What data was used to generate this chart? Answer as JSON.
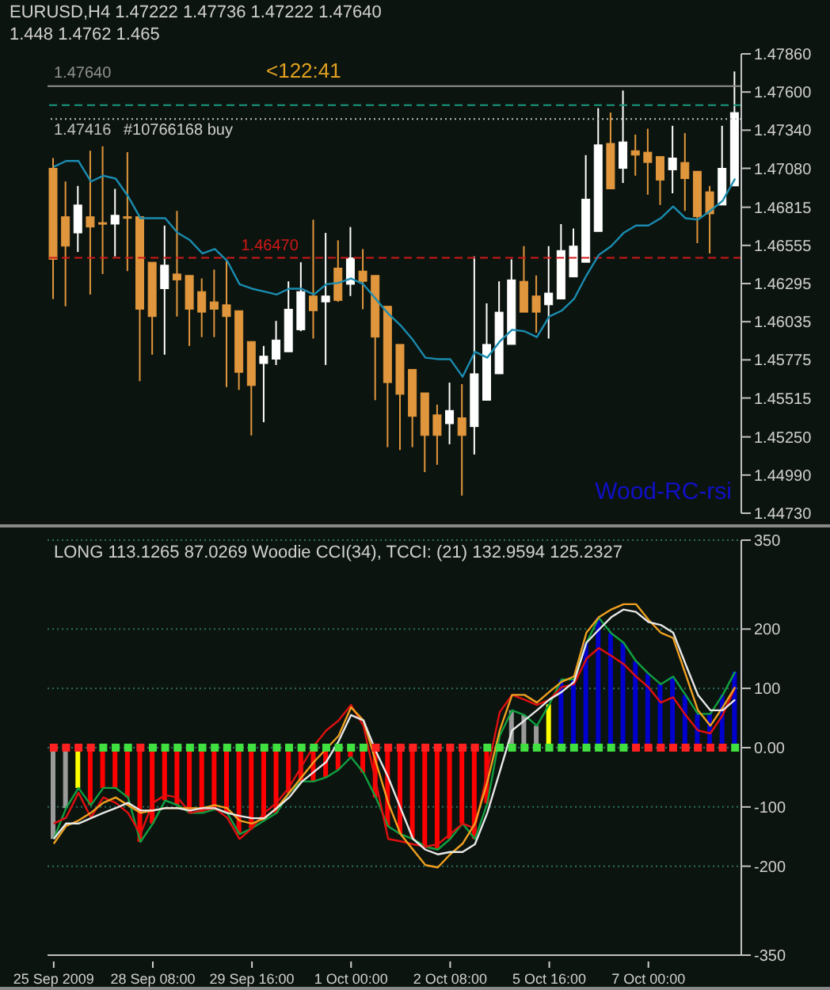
{
  "chart_data": [
    {
      "type": "candlestick",
      "title": "EURUSD,H4  1.47222 1.47736 1.47222 1.47640",
      "subtitle": "1.448 1.4762 1.465",
      "tick_labels": "y",
      "categories": [
        null,
        null,
        null,
        null,
        null,
        null,
        null,
        null,
        null,
        null,
        null,
        null,
        null,
        null,
        null,
        null,
        null,
        null,
        null,
        null,
        null,
        null,
        null,
        null,
        null,
        null,
        null,
        null,
        null,
        null,
        null,
        null,
        null,
        null,
        null,
        null,
        null,
        null,
        null,
        null,
        null,
        null,
        null,
        null,
        null,
        null,
        null,
        null,
        null,
        null,
        null,
        null,
        null,
        null,
        null,
        null
      ],
      "ohlc": [
        [
          1.4708,
          1.4715,
          1.4619,
          1.4646
        ],
        [
          1.4675,
          1.4699,
          1.4614,
          1.4655
        ],
        [
          1.4664,
          1.4696,
          1.4651,
          1.4683
        ],
        [
          1.4675,
          1.472,
          1.4622,
          1.4668
        ],
        [
          1.4671,
          1.4723,
          1.4636,
          1.467
        ],
        [
          1.467,
          1.4694,
          1.4648,
          1.4676
        ],
        [
          1.4675,
          1.4719,
          1.4638,
          1.4674
        ],
        [
          1.4675,
          1.4675,
          1.4563,
          1.4612
        ],
        [
          1.4644,
          1.4644,
          1.4581,
          1.4607
        ],
        [
          1.4626,
          1.4669,
          1.4581,
          1.4642
        ],
        [
          1.4636,
          1.4679,
          1.4607,
          1.4632
        ],
        [
          1.4635,
          1.4635,
          1.4587,
          1.4612
        ],
        [
          1.4624,
          1.4633,
          1.4593,
          1.461
        ],
        [
          1.4617,
          1.4639,
          1.4593,
          1.4612
        ],
        [
          1.4615,
          1.4645,
          1.4559,
          1.4607
        ],
        [
          1.4611,
          1.4611,
          1.4557,
          1.4569
        ],
        [
          1.459,
          1.459,
          1.4526,
          1.456
        ],
        [
          1.4575,
          1.4587,
          1.4535,
          1.458
        ],
        [
          1.4578,
          1.4604,
          1.4574,
          1.4591
        ],
        [
          1.4583,
          1.4631,
          1.4583,
          1.4612
        ],
        [
          1.4598,
          1.4644,
          1.4597,
          1.4624
        ],
        [
          1.4621,
          1.4673,
          1.4592,
          1.4611
        ],
        [
          1.4617,
          1.4664,
          1.4574,
          1.4621
        ],
        [
          1.464,
          1.4659,
          1.4617,
          1.4618
        ],
        [
          1.4629,
          1.4668,
          1.4621,
          1.4647
        ],
        [
          1.4638,
          1.4653,
          1.4612,
          1.4631
        ],
        [
          1.4635,
          1.4635,
          1.455,
          1.4593
        ],
        [
          1.4614,
          1.4614,
          1.4518,
          1.4562
        ],
        [
          1.4588,
          1.4588,
          1.4516,
          1.4554
        ],
        [
          1.4571,
          1.4571,
          1.4518,
          1.4539
        ],
        [
          1.4555,
          1.4555,
          1.4501,
          1.4526
        ],
        [
          1.454,
          1.4547,
          1.4506,
          1.4526
        ],
        [
          1.4534,
          1.4562,
          1.452,
          1.4543
        ],
        [
          1.4538,
          1.4561,
          1.4485,
          1.4526
        ],
        [
          1.4532,
          1.4648,
          1.4513,
          1.4568
        ],
        [
          1.455,
          1.4616,
          1.455,
          1.4588
        ],
        [
          1.4568,
          1.4631,
          1.4568,
          1.461
        ],
        [
          1.4588,
          1.4646,
          1.4588,
          1.4632
        ],
        [
          1.4631,
          1.4655,
          1.461,
          1.461
        ],
        [
          1.4621,
          1.4635,
          1.4596,
          1.461
        ],
        [
          1.4615,
          1.4655,
          1.4592,
          1.4623
        ],
        [
          1.4619,
          1.467,
          1.4619,
          1.4652
        ],
        [
          1.4634,
          1.4667,
          1.4634,
          1.4655
        ],
        [
          1.4644,
          1.4717,
          1.4644,
          1.4687
        ],
        [
          1.4665,
          1.4749,
          1.4665,
          1.4724
        ],
        [
          1.4725,
          1.4746,
          1.4694,
          1.4694
        ],
        [
          1.4708,
          1.4761,
          1.4698,
          1.4726
        ],
        [
          1.472,
          1.4731,
          1.4703,
          1.4717
        ],
        [
          1.4719,
          1.4735,
          1.469,
          1.4712
        ],
        [
          1.4716,
          1.4716,
          1.4683,
          1.47
        ],
        [
          1.4707,
          1.4737,
          1.4691,
          1.4715
        ],
        [
          1.4712,
          1.4732,
          1.4679,
          1.4701
        ],
        [
          1.4706,
          1.4706,
          1.4657,
          1.4675
        ],
        [
          1.4692,
          1.4696,
          1.465,
          1.4677
        ],
        [
          1.4683,
          1.4737,
          1.4683,
          1.4708
        ],
        [
          1.4696,
          1.4774,
          1.4696,
          1.4746
        ]
      ],
      "colors": [
        "#e0963c",
        "#e0963c",
        "#ffffff",
        "#e0963c",
        "#e0963c",
        "#ffffff",
        "#e0963c",
        "#e0963c",
        "#e0963c",
        "#ffffff",
        "#e0963c",
        "#e0963c",
        "#e0963c",
        "#e0963c",
        "#e0963c",
        "#e0963c",
        "#e0963c",
        "#ffffff",
        "#ffffff",
        "#ffffff",
        "#ffffff",
        "#e0963c",
        "#ffffff",
        "#e0963c",
        "#ffffff",
        "#e0963c",
        "#e0963c",
        "#e0963c",
        "#e0963c",
        "#e0963c",
        "#e0963c",
        "#e0963c",
        "#ffffff",
        "#e0963c",
        "#ffffff",
        "#ffffff",
        "#ffffff",
        "#ffffff",
        "#e0963c",
        "#e0963c",
        "#ffffff",
        "#ffffff",
        "#ffffff",
        "#ffffff",
        "#ffffff",
        "#e0963c",
        "#ffffff",
        "#e0963c",
        "#e0963c",
        "#e0963c",
        "#ffffff",
        "#e0963c",
        "#e0963c",
        "#e0963c",
        "#ffffff",
        "#ffffff"
      ],
      "series": [
        {
          "type": "line",
          "color": "#1a8cb0",
          "values": [
            1.4709,
            1.4713,
            1.4713,
            1.4699,
            1.4703,
            1.4701,
            1.4689,
            1.4674,
            1.4674,
            1.4674,
            1.4664,
            1.4659,
            1.465,
            1.4653,
            1.4645,
            1.4629,
            1.4626,
            1.4624,
            1.4622,
            1.4626,
            1.4626,
            1.4622,
            1.4629,
            1.463,
            1.4633,
            1.4629,
            1.4619,
            1.4609,
            1.4601,
            1.4591,
            1.4579,
            1.4578,
            1.4578,
            1.4566,
            1.4583,
            1.4579,
            1.459,
            1.4598,
            1.4597,
            1.4593,
            1.4607,
            1.4611,
            1.4619,
            1.4635,
            1.4649,
            1.4655,
            1.4664,
            1.4669,
            1.4669,
            1.4674,
            1.4682,
            1.4674,
            1.4673,
            1.4679,
            1.4686,
            1.4701
          ]
        }
      ],
      "ylim": [
        1.4473,
        1.4786
      ],
      "yticks": [
        {
          "value": 1.4786,
          "label": "1.47860"
        },
        {
          "value": 1.476,
          "label": "1.47600"
        },
        {
          "value": 1.4734,
          "label": "1.47340"
        },
        {
          "value": 1.4708,
          "label": "1.47080"
        },
        1.46815,
        {
          "value": 1.46555,
          "label": "1.46555"
        },
        {
          "value": 1.46295,
          "label": "1.46295"
        },
        1.46035,
        1.45775,
        1.45515,
        {
          "value": 1.4525,
          "label": "1.45250"
        },
        {
          "value": 1.4499,
          "label": "1.44990"
        },
        {
          "value": 1.4473,
          "label": "1.44730"
        }
      ],
      "ref_lines": [
        {
          "axis": "y",
          "value": 1.4764,
          "label": "1.47640",
          "color": "#909090",
          "line_style": "solid"
        },
        {
          "axis": "y",
          "value": 1.4751,
          "color": "#1a9a80",
          "line_style": "dashed"
        },
        {
          "axis": "y",
          "value": 1.47416,
          "label": "1.47416",
          "color": "#c0c0c0",
          "line_style": "dotted"
        },
        {
          "axis": "y",
          "value": 1.4647,
          "label": "1.46470",
          "color": "#d01818",
          "line_style": "dashed"
        }
      ],
      "annotations": [
        {
          "text": "#10766168 buy",
          "y": 1.47416
        },
        {
          "text": "<122:41",
          "y": 1.4764
        },
        "Wood-RC-rsi"
      ]
    },
    {
      "type": "bar",
      "title": "LONG 113.1265 87.0269  Woodie CCI(34), TCCI: (21) 132.9594 125.2327",
      "grid": "y",
      "categories": [
        "25 Sep 2009",
        null,
        null,
        null,
        null,
        null,
        null,
        null,
        "28 Sep 08:00",
        null,
        null,
        null,
        null,
        null,
        null,
        null,
        "29 Sep 16:00",
        null,
        null,
        null,
        null,
        null,
        null,
        null,
        "1 Oct 00:00",
        null,
        null,
        null,
        null,
        null,
        null,
        null,
        "2 Oct 08:00",
        null,
        null,
        null,
        null,
        null,
        null,
        null,
        "5 Oct 16:00",
        null,
        null,
        null,
        null,
        null,
        null,
        null,
        "7 Oct 00:00",
        null,
        null,
        null,
        null,
        null,
        null,
        null
      ],
      "series": [
        {
          "type": "bar",
          "colors": [
            "#9a9a9a",
            "#9a9a9a",
            "#ffff00",
            "#ff0000",
            "#ff0000",
            "#ff0000",
            "#ff0000",
            "#ff0000",
            "#ff0000",
            "#ff0000",
            "#ff0000",
            "#ff0000",
            "#ff0000",
            "#ff0000",
            "#ff0000",
            "#ff0000",
            "#ff0000",
            "#ff0000",
            "#ff0000",
            "#ff0000",
            "#ff0000",
            "#ff0000",
            "#ff0000",
            "#ff0000",
            "#ff0000",
            "#ff0000",
            "#ff0000",
            "#ff0000",
            "#ff0000",
            "#ff0000",
            "#ff0000",
            "#ff0000",
            "#ff0000",
            "#ff0000",
            "#ff0000",
            "#ff0000",
            "#9a9a9a",
            "#9a9a9a",
            "#9a9a9a",
            "#9a9a9a",
            "#ffff00",
            "#0000cc",
            "#0000cc",
            "#0000cc",
            "#0000cc",
            "#0000cc",
            "#0000cc",
            "#0000cc",
            "#0000cc",
            "#0000cc",
            "#0000cc",
            "#0000cc",
            "#0000cc",
            "#0000cc",
            "#0000cc",
            "#0000cc"
          ],
          "values": [
            -154,
            -102,
            -68,
            -97,
            -68,
            -68,
            -84,
            -159,
            -128,
            -89,
            -97,
            -110,
            -110,
            -104,
            -110,
            -146,
            -136,
            -123,
            -110,
            -76,
            -57,
            -57,
            -50,
            -37,
            -16,
            -42,
            -84,
            -133,
            -146,
            -154,
            -167,
            -172,
            -154,
            -128,
            -154,
            -94,
            null,
            63,
            55,
            37,
            73,
            115,
            115,
            177,
            219,
            193,
            177,
            146,
            125,
            107,
            120,
            89,
            57,
            57,
            89,
            128
          ]
        },
        {
          "type": "line",
          "color": "#10a040",
          "values": [
            -154,
            -102,
            -68,
            -97,
            -68,
            -68,
            -84,
            -159,
            -128,
            -89,
            -97,
            -110,
            -110,
            -104,
            -110,
            -146,
            -136,
            -123,
            -110,
            -76,
            -57,
            -57,
            -50,
            -37,
            -16,
            -42,
            -84,
            -133,
            -146,
            -154,
            -167,
            -172,
            -154,
            -128,
            -154,
            -94,
            20,
            63,
            55,
            37,
            73,
            115,
            115,
            177,
            219,
            193,
            177,
            146,
            125,
            107,
            120,
            89,
            57,
            57,
            89,
            128
          ]
        },
        {
          "type": "line",
          "color": "#e01010",
          "values": [
            -128,
            -118,
            -76,
            -118,
            -84,
            -93,
            -110,
            -146,
            -93,
            -80,
            -84,
            -110,
            -106,
            -102,
            -118,
            -154,
            -136,
            -110,
            -93,
            -67,
            -32,
            3,
            29,
            46,
            72,
            37,
            -58,
            -154,
            -158,
            -163,
            -167,
            -163,
            -146,
            -128,
            -136,
            -41,
            60,
            89,
            81,
            72,
            81,
            102,
            107,
            150,
            168,
            155,
            141,
            120,
            102,
            76,
            85,
            55,
            29,
            24,
            55,
            102
          ]
        },
        {
          "type": "line",
          "color": "#f0a020",
          "values": [
            -162,
            -132,
            -123,
            -110,
            -93,
            -84,
            -97,
            -110,
            -106,
            -102,
            -102,
            -102,
            -102,
            -97,
            -102,
            -123,
            -128,
            -119,
            -102,
            -76,
            -50,
            -24,
            -2,
            20,
            68,
            46,
            -24,
            -93,
            -146,
            -172,
            -198,
            -202,
            -180,
            -162,
            -128,
            -58,
            29,
            89,
            89,
            76,
            94,
            111,
            120,
            194,
            220,
            233,
            242,
            242,
            216,
            194,
            185,
            124,
            63,
            37,
            68,
            102
          ]
        },
        {
          "type": "line",
          "color": "#e8e8e8",
          "values": [
            -154,
            -128,
            -128,
            -119,
            -110,
            -102,
            -93,
            -106,
            -106,
            -102,
            -102,
            -106,
            -102,
            -102,
            -110,
            -115,
            -119,
            -119,
            -102,
            -84,
            -58,
            -41,
            -24,
            11,
            55,
            46,
            -6,
            -50,
            -102,
            -154,
            -172,
            -180,
            -176,
            -176,
            -163,
            -110,
            -41,
            29,
            46,
            63,
            81,
            94,
            111,
            177,
            199,
            220,
            233,
            229,
            212,
            207,
            194,
            141,
            89,
            63,
            63,
            81
          ]
        },
        {
          "type": "scatter",
          "marker": "square",
          "colors": [
            "#ff2020",
            "#ff2020",
            "#ff2020",
            "#ff2020",
            "#40e040",
            "#40e040",
            "#40e040",
            "#ff2020",
            "#40e040",
            "#40e040",
            "#40e040",
            "#40e040",
            "#40e040",
            "#40e040",
            "#40e040",
            "#40e040",
            "#40e040",
            "#40e040",
            "#40e040",
            "#40e040",
            "#40e040",
            "#40e040",
            "#40e040",
            "#40e040",
            "#40e040",
            "#40e040",
            "#ff2020",
            "#ff2020",
            "#ff2020",
            "#ff2020",
            "#ff2020",
            "#ff2020",
            "#ff2020",
            "#ff2020",
            "#ff2020",
            "#40e040",
            "#40e040",
            "#40e040",
            "#40e040",
            "#40e040",
            "#40e040",
            "#40e040",
            "#40e040",
            "#40e040",
            "#40e040",
            "#40e040",
            "#40e040",
            "#ff2020",
            "#ff2020",
            "#ff2020",
            "#ff2020",
            "#ff2020",
            "#ff2020",
            "#ff2020",
            "#ff2020",
            "#40e040"
          ],
          "values": [
            0,
            0,
            0,
            0,
            0,
            0,
            0,
            0,
            0,
            0,
            0,
            0,
            0,
            0,
            0,
            0,
            0,
            0,
            0,
            0,
            0,
            0,
            0,
            0,
            0,
            0,
            0,
            0,
            0,
            0,
            0,
            0,
            0,
            0,
            0,
            0,
            0,
            0,
            0,
            0,
            0,
            0,
            0,
            0,
            0,
            0,
            0,
            0,
            0,
            0,
            0,
            0,
            0,
            0,
            0,
            0
          ]
        }
      ],
      "ylim": [
        -350,
        350
      ],
      "yticks": [
        350,
        200,
        100,
        {
          "value": 0,
          "label": "0.00"
        },
        -100,
        -200,
        -350
      ]
    }
  ]
}
